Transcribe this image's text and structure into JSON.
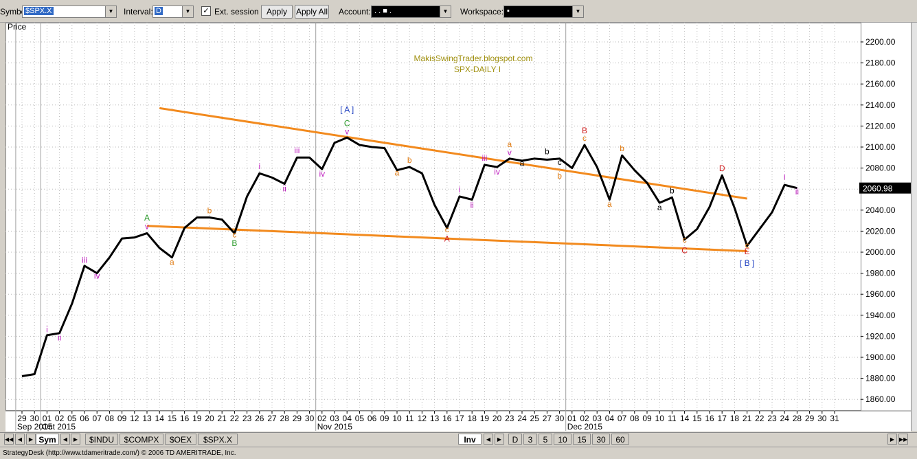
{
  "toolbar": {
    "symbol_label": "Symbol:",
    "symbol_value": "$SPX.X",
    "interval_label": "Interval:",
    "interval_value": "D",
    "ext_session_label": "Ext. session",
    "ext_session_checked": true,
    "apply_label": "Apply",
    "apply_all_label": "Apply All",
    "account_label": "Account:",
    "account_value": ". . ■ .",
    "workspace_label": "Workspace:",
    "workspace_value": "▪"
  },
  "chart": {
    "price_label": "Price",
    "watermark": "MakisSwingTrader.blogspot.com",
    "subtitle": "SPX-DAILY  I",
    "last_price": "2060.98"
  },
  "bottom": {
    "symbol_tabs": [
      "Sym",
      "$INDU",
      "$COMPX",
      "$OEX",
      "$SPX.X"
    ],
    "inv_label": "Inv",
    "interval_tabs": [
      "D",
      "3",
      "5",
      "10",
      "15",
      "30",
      "60"
    ]
  },
  "status_text": "StrategyDesk (http://www.tdameritrade.com/) © 2006 TD AMERITRADE, Inc.",
  "colors": {
    "price_line": "#000000",
    "trendline": "#f28a1e",
    "magenta": "#c020c0",
    "green": "#2a9a2a",
    "orange": "#e07a10",
    "red": "#d02020",
    "blue": "#1a3cc0",
    "olive": "#a09010"
  },
  "chart_data": {
    "type": "line",
    "ylim": [
      1840,
      2220
    ],
    "y_ticks": [
      "1860.00",
      "1880.00",
      "1900.00",
      "1920.00",
      "1940.00",
      "1960.00",
      "1980.00",
      "2000.00",
      "2020.00",
      "2040.00",
      "2060.00",
      "2080.00",
      "2100.00",
      "2120.00",
      "2140.00",
      "2160.00",
      "2180.00",
      "2200.00"
    ],
    "x_labels": [
      "29",
      "30",
      "01",
      "02",
      "05",
      "06",
      "07",
      "08",
      "09",
      "12",
      "13",
      "14",
      "15",
      "16",
      "19",
      "20",
      "21",
      "22",
      "23",
      "26",
      "27",
      "28",
      "29",
      "30",
      "02",
      "03",
      "04",
      "05",
      "06",
      "09",
      "10",
      "11",
      "12",
      "13",
      "16",
      "17",
      "18",
      "19",
      "20",
      "23",
      "24",
      "25",
      "27",
      "30",
      "01",
      "02",
      "03",
      "04",
      "07",
      "08",
      "09",
      "10",
      "11",
      "14",
      "15",
      "16",
      "17",
      "18",
      "21",
      "22",
      "23",
      "24",
      "28",
      "29",
      "30",
      "31"
    ],
    "months": [
      {
        "label": "Sep 2015",
        "at_index": 0
      },
      {
        "label": "Oct 2015",
        "at_index": 2
      },
      {
        "label": "Nov 2015",
        "at_index": 24
      },
      {
        "label": "Dec 2015",
        "at_index": 44
      }
    ],
    "closes": [
      1882,
      1884,
      1921,
      1923,
      1951,
      1987,
      1980,
      1995,
      2013,
      2014,
      2018,
      2004,
      1995,
      2023,
      2033,
      2033,
      2031,
      2018,
      2053,
      2075,
      2071,
      2065,
      2090,
      2090,
      2079,
      2104,
      2109,
      2102,
      2100,
      2099,
      2078,
      2081,
      2075,
      2045,
      2023,
      2053,
      2050,
      2083,
      2081,
      2089,
      2087,
      2089,
      2088,
      2089,
      2080,
      2102,
      2081,
      2050,
      2092,
      2078,
      2066,
      2047,
      2052,
      2012,
      2022,
      2043,
      2073,
      2042,
      2006,
      2022,
      2038,
      2064,
      2061
    ],
    "trendlines": [
      {
        "name": "upper",
        "from": [
          11,
          2137
        ],
        "to": [
          58,
          2051
        ]
      },
      {
        "name": "lower",
        "from": [
          10,
          2025
        ],
        "to": [
          58,
          2001
        ]
      }
    ],
    "annotations": [
      {
        "t": "i",
        "i": 2,
        "p": 1924,
        "c": "magenta"
      },
      {
        "t": "ii",
        "i": 3,
        "p": 1916,
        "c": "magenta"
      },
      {
        "t": "iii",
        "i": 5,
        "p": 1990,
        "c": "magenta"
      },
      {
        "t": "iv",
        "i": 6,
        "p": 1975,
        "c": "magenta"
      },
      {
        "t": "A",
        "i": 10,
        "p": 2030,
        "c": "green"
      },
      {
        "t": "v",
        "i": 10,
        "p": 2022,
        "c": "magenta"
      },
      {
        "t": "a",
        "i": 12,
        "p": 1988,
        "c": "orange"
      },
      {
        "t": "b",
        "i": 15,
        "p": 2037,
        "c": "orange"
      },
      {
        "t": "c",
        "i": 17,
        "p": 2014,
        "c": "orange"
      },
      {
        "t": "B",
        "i": 17,
        "p": 2006,
        "c": "green"
      },
      {
        "t": "i",
        "i": 19,
        "p": 2079,
        "c": "magenta"
      },
      {
        "t": "ii",
        "i": 21,
        "p": 2058,
        "c": "magenta"
      },
      {
        "t": "iii",
        "i": 22,
        "p": 2094,
        "c": "magenta"
      },
      {
        "t": "iv",
        "i": 24,
        "p": 2072,
        "c": "magenta"
      },
      {
        "t": "[     A     ]",
        "i": 26,
        "p": 2133,
        "c": "blue"
      },
      {
        "t": "C",
        "i": 26,
        "p": 2120,
        "c": "green"
      },
      {
        "t": "v",
        "i": 26,
        "p": 2112,
        "c": "magenta"
      },
      {
        "t": "a",
        "i": 30,
        "p": 2073,
        "c": "orange"
      },
      {
        "t": "b",
        "i": 31,
        "p": 2085,
        "c": "orange"
      },
      {
        "t": "c",
        "i": 34,
        "p": 2019,
        "c": "orange"
      },
      {
        "t": "A",
        "i": 34,
        "p": 2010,
        "c": "red"
      },
      {
        "t": "i",
        "i": 35,
        "p": 2057,
        "c": "magenta"
      },
      {
        "t": "ii",
        "i": 36,
        "p": 2042,
        "c": "magenta"
      },
      {
        "t": "iii",
        "i": 37,
        "p": 2087,
        "c": "magenta"
      },
      {
        "t": "iv",
        "i": 38,
        "p": 2074,
        "c": "magenta"
      },
      {
        "t": "a",
        "i": 39,
        "p": 2100,
        "c": "orange"
      },
      {
        "t": "v",
        "i": 39,
        "p": 2092,
        "c": "magenta"
      },
      {
        "t": "a",
        "i": 40,
        "p": 2082,
        "c": "black"
      },
      {
        "t": "b",
        "i": 42,
        "p": 2093,
        "c": "black"
      },
      {
        "t": "c",
        "i": 43,
        "p": 2083,
        "c": "black"
      },
      {
        "t": "b",
        "i": 43,
        "p": 2070,
        "c": "orange"
      },
      {
        "t": "B",
        "i": 45,
        "p": 2113,
        "c": "red"
      },
      {
        "t": "c",
        "i": 45,
        "p": 2106,
        "c": "orange"
      },
      {
        "t": "a",
        "i": 47,
        "p": 2043,
        "c": "orange"
      },
      {
        "t": "b",
        "i": 48,
        "p": 2096,
        "c": "orange"
      },
      {
        "t": "a",
        "i": 51,
        "p": 2040,
        "c": "black"
      },
      {
        "t": "b",
        "i": 52,
        "p": 2056,
        "c": "black"
      },
      {
        "t": "c",
        "i": 53,
        "p": 2009,
        "c": "orange"
      },
      {
        "t": "C",
        "i": 53,
        "p": 1999,
        "c": "red"
      },
      {
        "t": "D",
        "i": 56,
        "p": 2077,
        "c": "red"
      },
      {
        "t": "c",
        "i": 58,
        "p": 2004,
        "c": "orange"
      },
      {
        "t": "E",
        "i": 58,
        "p": 1998,
        "c": "red"
      },
      {
        "t": "[     B     ]",
        "i": 58,
        "p": 1987,
        "c": "blue"
      },
      {
        "t": "i",
        "i": 61,
        "p": 2069,
        "c": "magenta"
      },
      {
        "t": "ii",
        "i": 62,
        "p": 2055,
        "c": "magenta"
      }
    ]
  }
}
